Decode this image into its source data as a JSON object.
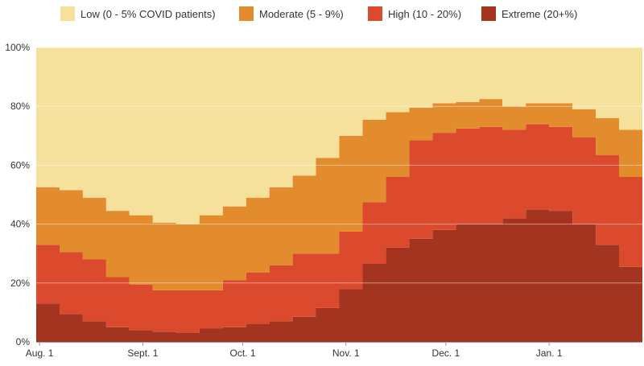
{
  "chart_data": {
    "type": "area",
    "stacked": true,
    "step": true,
    "x": [
      "2020-07-31",
      "2020-08-07",
      "2020-08-14",
      "2020-08-21",
      "2020-08-28",
      "2020-09-04",
      "2020-09-11",
      "2020-09-18",
      "2020-09-25",
      "2020-10-02",
      "2020-10-09",
      "2020-10-16",
      "2020-10-23",
      "2020-10-30",
      "2020-11-06",
      "2020-11-13",
      "2020-11-20",
      "2020-11-27",
      "2020-12-04",
      "2020-12-11",
      "2020-12-18",
      "2020-12-25",
      "2021-01-01",
      "2021-01-08",
      "2021-01-15",
      "2021-01-22"
    ],
    "x_tick_labels": [
      {
        "label": "Aug. 1",
        "date": "2020-08-01"
      },
      {
        "label": "Sept. 1",
        "date": "2020-09-01"
      },
      {
        "label": "Oct. 1",
        "date": "2020-10-01"
      },
      {
        "label": "Nov. 1",
        "date": "2020-11-01"
      },
      {
        "label": "Dec. 1",
        "date": "2020-12-01"
      },
      {
        "label": "Jan. 1",
        "date": "2021-01-01"
      }
    ],
    "xlim": [
      "2020-07-31",
      "2021-01-29"
    ],
    "y_tick_labels": [
      "0%",
      "20%",
      "40%",
      "60%",
      "80%",
      "100%"
    ],
    "ylim": [
      0,
      100
    ],
    "grid": true,
    "legend_position": "top",
    "series": [
      {
        "name": "Extreme (20+%)",
        "color": "#a33520",
        "values": [
          13,
          9.5,
          7,
          5,
          4,
          3.5,
          3,
          4.5,
          5,
          6,
          7,
          8.5,
          11.5,
          18,
          26.5,
          32,
          35,
          38,
          40,
          40,
          42,
          45,
          44.5,
          40,
          33,
          25.5
        ]
      },
      {
        "name": "High (10 - 20%)",
        "color": "#dc4a2e",
        "values": [
          20,
          21,
          21,
          17,
          15.5,
          14,
          14.5,
          13,
          16,
          17.5,
          19,
          21.5,
          18.5,
          19.5,
          21,
          24,
          33.5,
          33,
          32.5,
          33,
          30,
          29,
          28.5,
          29.5,
          30.5,
          30.5
        ]
      },
      {
        "name": "Moderate (5 - 9%)",
        "color": "#e28c2e",
        "values": [
          19.5,
          21,
          21,
          22.5,
          23.5,
          23,
          22.5,
          25.5,
          25,
          25.5,
          26.5,
          26.5,
          32.5,
          32.5,
          28,
          22,
          11,
          10,
          9,
          9.5,
          8,
          7,
          8,
          9.5,
          12.5,
          16
        ]
      },
      {
        "name": "Low (0 - 5% COVID patients)",
        "color": "#f6e19c",
        "values": [
          47.5,
          48.5,
          51,
          55.5,
          57,
          59.5,
          60,
          57,
          54,
          51,
          47.5,
          43.5,
          37.5,
          30,
          24.5,
          22,
          20.5,
          19,
          18.5,
          17.5,
          20,
          19,
          19,
          21,
          24,
          28
        ]
      }
    ]
  }
}
